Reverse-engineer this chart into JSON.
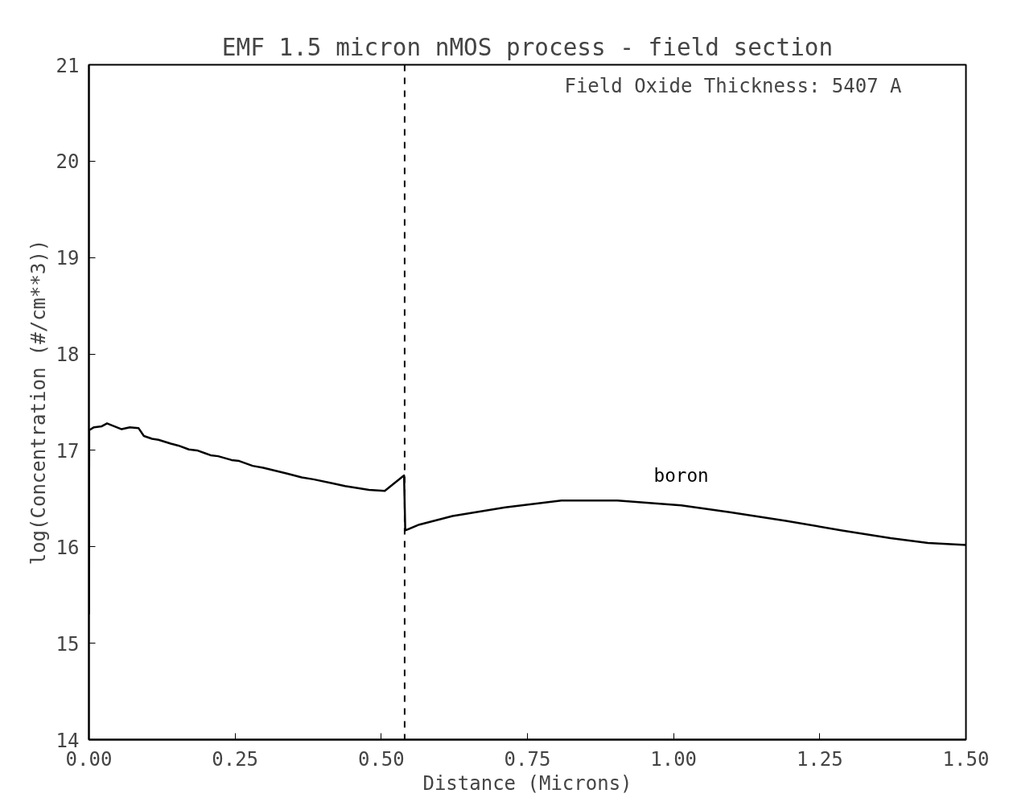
{
  "chart_data": {
    "type": "line",
    "title": "EMF 1.5 micron nMOS process - field section",
    "xlabel": "Distance (Microns)",
    "ylabel": "log(Concentration (#/cm**3))",
    "xlim": [
      0,
      1.5
    ],
    "ylim": [
      14,
      21
    ],
    "xticks": [
      {
        "value": 0,
        "label": "0.00"
      },
      {
        "value": 0.25,
        "label": "0.25"
      },
      {
        "value": 0.5,
        "label": "0.50"
      },
      {
        "value": 0.75,
        "label": "0.75"
      },
      {
        "value": 1,
        "label": "1.00"
      },
      {
        "value": 1.25,
        "label": "1.25"
      },
      {
        "value": 1.5,
        "label": "1.50"
      }
    ],
    "yticks": [
      14,
      15,
      16,
      17,
      18,
      19,
      20,
      21
    ],
    "grid": false,
    "marker": "none",
    "line_style": "solid",
    "annotations": [
      "Field Oxide Thickness: 5407 A"
    ],
    "ref_lines": [
      {
        "axis": "x",
        "value": 0.54,
        "label": null,
        "color": "#000000",
        "line_style": "dashed"
      }
    ],
    "series": [
      {
        "name": "boron",
        "color": "#000000",
        "x": [
          0.0,
          0.0005,
          0.0087,
          0.022,
          0.031,
          0.056,
          0.07,
          0.085,
          0.094,
          0.108,
          0.119,
          0.14,
          0.153,
          0.171,
          0.185,
          0.208,
          0.221,
          0.244,
          0.257,
          0.28,
          0.298,
          0.339,
          0.364,
          0.384,
          0.416,
          0.438,
          0.479,
          0.506,
          0.539,
          0.541,
          0.565,
          0.622,
          0.712,
          0.808,
          0.904,
          1.013,
          1.096,
          1.192,
          1.288,
          1.371,
          1.435,
          1.5
        ],
        "values": [
          15.3,
          17.21,
          17.24,
          17.25,
          17.28,
          17.22,
          17.24,
          17.23,
          17.15,
          17.12,
          17.11,
          17.07,
          17.05,
          17.01,
          17.0,
          16.95,
          16.94,
          16.9,
          16.89,
          16.84,
          16.82,
          16.76,
          16.72,
          16.7,
          16.66,
          16.63,
          16.59,
          16.58,
          16.74,
          16.17,
          16.23,
          16.32,
          16.41,
          16.48,
          16.48,
          16.43,
          16.36,
          16.27,
          16.17,
          16.09,
          16.04,
          16.02
        ]
      }
    ]
  }
}
